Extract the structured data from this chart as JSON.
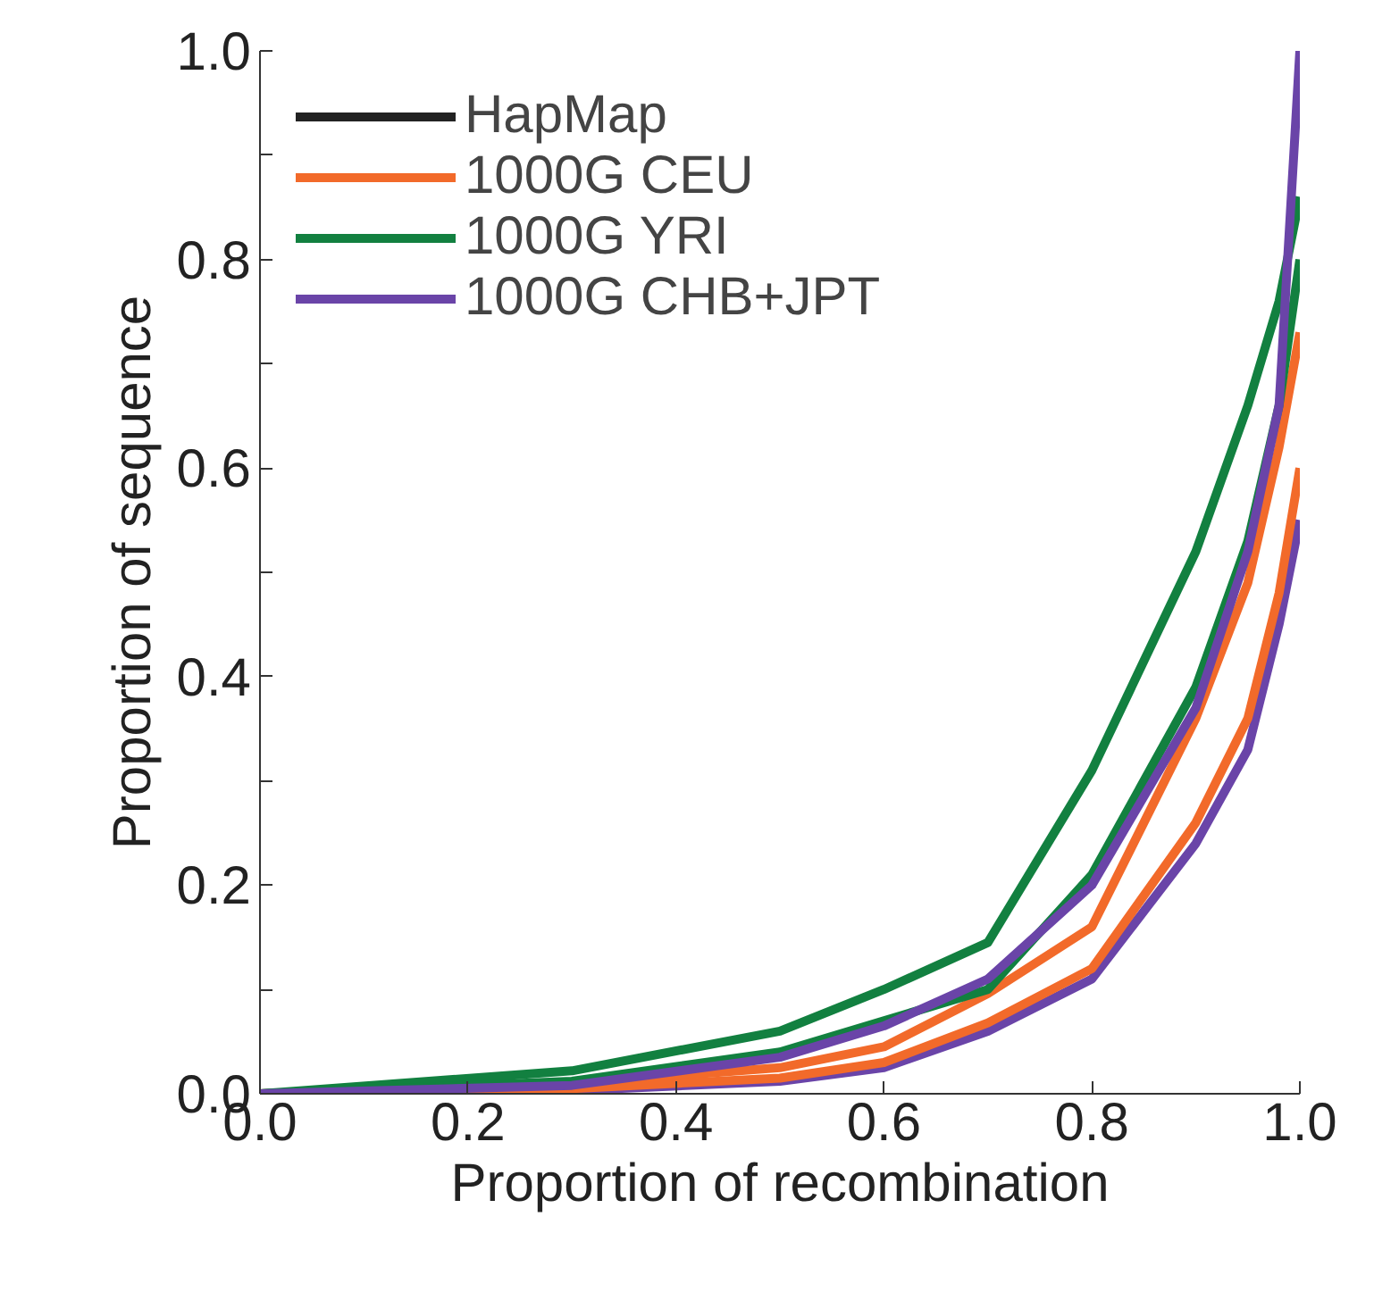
{
  "chart_data": {
    "type": "line",
    "xlabel": "Proportion of recombination",
    "ylabel": "Proportion of sequence",
    "x": [
      0,
      0.3,
      0.5,
      0.6,
      0.7,
      0.8,
      0.9,
      0.95,
      0.98,
      1.0
    ],
    "series": [
      {
        "name": "HapMap",
        "color": "#222222",
        "values": [
          null,
          null,
          null,
          null,
          null,
          null,
          null,
          null,
          null,
          null
        ]
      },
      {
        "color": "#6a44a8",
        "values": [
          0,
          0.003,
          0.012,
          0.025,
          0.06,
          0.11,
          0.24,
          0.33,
          0.45,
          0.55
        ]
      },
      {
        "name": "1000G CEU",
        "color": "#f26a2a",
        "values": [
          0,
          0.01,
          0.025,
          0.045,
          0.096,
          0.16,
          0.36,
          0.49,
          0.62,
          0.73
        ]
      },
      {
        "color": "#f26a2a",
        "values": [
          0,
          0.005,
          0.015,
          0.03,
          0.068,
          0.12,
          0.26,
          0.36,
          0.48,
          0.6
        ]
      },
      {
        "name": "1000G YRI",
        "color": "#128040",
        "values": [
          0,
          0.022,
          0.06,
          0.1,
          0.145,
          0.31,
          0.52,
          0.66,
          0.76,
          0.86
        ]
      },
      {
        "color": "#128040",
        "values": [
          0,
          0.012,
          0.04,
          0.07,
          0.1,
          0.21,
          0.39,
          0.53,
          0.66,
          0.8
        ]
      },
      {
        "name": "1000G CHB+JPT",
        "color": "#6a44a8",
        "values": [
          0,
          0.008,
          0.035,
          0.065,
          0.11,
          0.2,
          0.37,
          0.52,
          0.66,
          1.0
        ]
      }
    ],
    "xlim": [
      0,
      1.0
    ],
    "ylim": [
      0,
      1.0
    ],
    "xticks": [
      {
        "value": 0,
        "label": "0.0"
      },
      0.2,
      0.4,
      0.6,
      0.8,
      {
        "value": 1,
        "label": "1.0"
      }
    ],
    "yticks": [
      {
        "value": 0,
        "label": "0.0"
      },
      {
        "value": 0.1,
        "label": null
      },
      0.2,
      {
        "value": 0.3,
        "label": null
      },
      0.4,
      {
        "value": 0.5,
        "label": null
      },
      0.6,
      {
        "value": 0.7,
        "label": null
      },
      0.8,
      {
        "value": 0.9,
        "label": null
      },
      {
        "value": 1,
        "label": "1.0"
      }
    ],
    "grid": false,
    "legend": "top left",
    "line_style": "solid",
    "marker": "none"
  }
}
